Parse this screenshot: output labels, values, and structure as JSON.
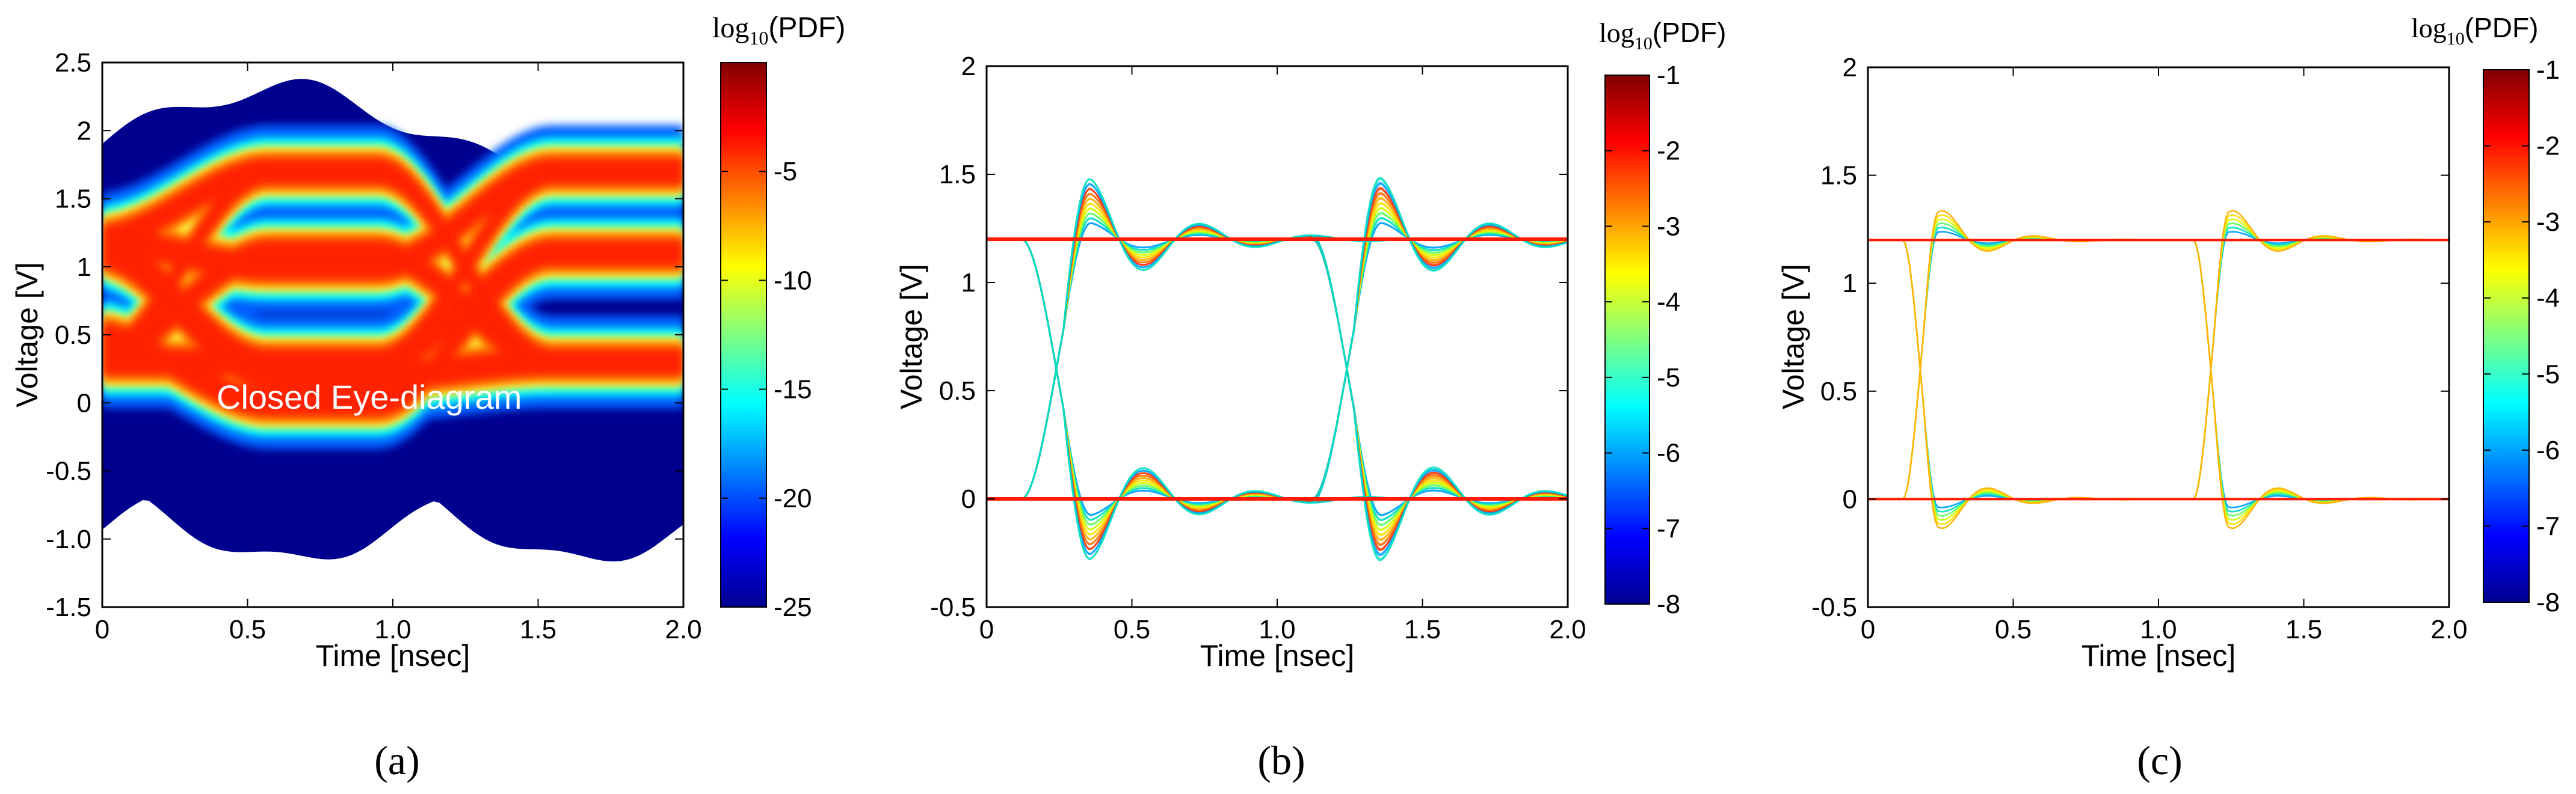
{
  "chart_data": [
    {
      "type": "heatmap",
      "panel_label": "(a)",
      "title": "",
      "xlabel": "Time [nsec]",
      "ylabel": "Voltage [V]",
      "xlim": [
        0,
        2.0
      ],
      "ylim": [
        -1.5,
        2.5
      ],
      "xticks": [
        "0",
        "0.5",
        "1.0",
        "1.5",
        "2.0"
      ],
      "yticks": [
        "2.5",
        "2",
        "1.5",
        "1",
        "0.5",
        "0",
        "-0.5",
        "-1.0",
        "-1.5"
      ],
      "colorbar": {
        "label_prefix": "log",
        "label_sub": "10",
        "label_suffix": "(PDF)",
        "range": [
          -25,
          0
        ],
        "ticks": [
          "-5",
          "-10",
          "-15",
          "-20",
          "-25"
        ]
      },
      "annotation": "Closed Eye-diagram",
      "colormap": [
        "#00008f",
        "#0000ff",
        "#0080ff",
        "#00ffff",
        "#80ff80",
        "#ffff00",
        "#ff8000",
        "#ff0000",
        "#800000"
      ]
    },
    {
      "type": "heatmap",
      "panel_label": "(b)",
      "title": "",
      "xlabel": "Time [nsec]",
      "ylabel": "Voltage [V]",
      "xlim": [
        0,
        2.0
      ],
      "ylim": [
        -0.5,
        2
      ],
      "xticks": [
        "0",
        "0.5",
        "1.0",
        "1.5",
        "2.0"
      ],
      "yticks": [
        "2",
        "1.5",
        "1",
        "0.5",
        "0",
        "-0.5"
      ],
      "colorbar": {
        "label_prefix": "log",
        "label_sub": "10",
        "label_suffix": "(PDF)",
        "range": [
          -8,
          -1
        ],
        "ticks": [
          "-1",
          "-2",
          "-3",
          "-4",
          "-5",
          "-6",
          "-7",
          "-8"
        ]
      },
      "colormap": [
        "#00008f",
        "#0000ff",
        "#0080ff",
        "#00ffff",
        "#80ff80",
        "#ffff00",
        "#ff8000",
        "#ff0000",
        "#800000"
      ]
    },
    {
      "type": "heatmap",
      "panel_label": "(c)",
      "title": "",
      "xlabel": "Time [nsec]",
      "ylabel": "Voltage [V]",
      "xlim": [
        0,
        2.0
      ],
      "ylim": [
        -0.5,
        2
      ],
      "xticks": [
        "0",
        "0.5",
        "1.0",
        "1.5",
        "2.0"
      ],
      "yticks": [
        "2",
        "1.5",
        "1",
        "0.5",
        "0",
        "-0.5"
      ],
      "colorbar": {
        "label_prefix": "log",
        "label_sub": "10",
        "label_suffix": "(PDF)",
        "range": [
          -8,
          -1
        ],
        "ticks": [
          "-1",
          "-2",
          "-3",
          "-4",
          "-5",
          "-6",
          "-7",
          "-8"
        ]
      },
      "colormap": [
        "#00008f",
        "#0000ff",
        "#0080ff",
        "#00ffff",
        "#80ff80",
        "#ffff00",
        "#ff8000",
        "#ff0000",
        "#800000"
      ]
    }
  ]
}
